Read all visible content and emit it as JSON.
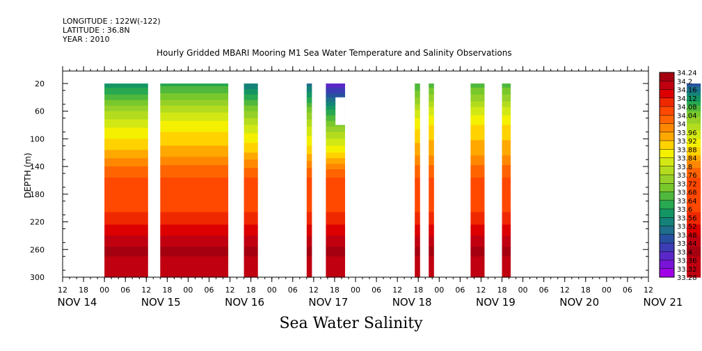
{
  "header": {
    "longitude": "LONGITUDE : 122W(-122)",
    "latitude": "LATITUDE : 36.8N",
    "year": "YEAR : 2010"
  },
  "chart_data": {
    "type": "heatmap",
    "title": "Hourly Gridded MBARI Mooring M1 Sea Water Temperature and Salinity Observations",
    "bottom_title": "Sea Water Salinity",
    "xlabel": "",
    "ylabel": "DEPTH (m)",
    "x_hour_ticks": [
      "12",
      "18",
      "00",
      "06",
      "12",
      "18",
      "00",
      "06",
      "12",
      "18",
      "00",
      "06",
      "12",
      "18",
      "00",
      "06",
      "12",
      "18",
      "00",
      "06",
      "12",
      "18",
      "00",
      "06",
      "12",
      "18",
      "00",
      "06",
      "12"
    ],
    "x_date_labels": [
      "NOV 14",
      "NOV 15",
      "NOV 16",
      "NOV 17",
      "NOV 18",
      "NOV 19",
      "NOV 20",
      "NOV 21"
    ],
    "x_range_hours": [
      12,
      180
    ],
    "x_origin_label": "NOV 14 00",
    "y_ticks": [
      20,
      60,
      100,
      140,
      180,
      220,
      260,
      300
    ],
    "ylim": [
      300,
      2
    ],
    "colorbar_levels": [
      34.24,
      34.2,
      34.16,
      34.12,
      34.08,
      34.04,
      34,
      33.96,
      33.92,
      33.88,
      33.84,
      33.8,
      33.76,
      33.72,
      33.68,
      33.64,
      33.6,
      33.56,
      33.52,
      33.48,
      33.44,
      33.4,
      33.36,
      33.32,
      33.28
    ],
    "colorbar_labels": [
      "34.24",
      "34.2",
      "34.16",
      "34.12",
      "34.08",
      "34.04",
      "34",
      "33.96",
      "33.92",
      "33.88",
      "33.84",
      "33.8",
      "33.76",
      "33.72",
      "33.68",
      "33.64",
      "33.6",
      "33.56",
      "33.52",
      "33.48",
      "33.44",
      "33.4",
      "33.36",
      "33.32",
      "33.28"
    ],
    "colors": {
      "34.22": "#a50010",
      "34.18": "#c00010",
      "34.14": "#dc0000",
      "34.10": "#f02800",
      "34.06": "#ff4800",
      "34.02": "#ff6400",
      "33.98": "#ff8800",
      "33.94": "#ffa800",
      "33.90": "#ffd200",
      "33.86": "#f4f000",
      "33.82": "#d2e814",
      "33.78": "#b4dc1e",
      "33.74": "#96d028",
      "33.70": "#78c82c",
      "33.66": "#50b83c",
      "33.62": "#28a850",
      "33.58": "#149664",
      "33.54": "#148278",
      "33.50": "#1e6e8c",
      "33.46": "#2850a0",
      "33.42": "#3c3cb4",
      "33.38": "#5a28c8",
      "33.34": "#7814d7",
      "33.30": "#a000e6"
    },
    "profile_depths": [
      20,
      40,
      60,
      80,
      100,
      120,
      140,
      160,
      180,
      200,
      220,
      240,
      260,
      280,
      300
    ],
    "profile_salinity": [
      33.57,
      33.66,
      33.76,
      33.83,
      33.88,
      33.93,
      34.0,
      34.05,
      34.06,
      34.07,
      34.11,
      34.16,
      34.21,
      34.19,
      34.17
    ],
    "segments": [
      {
        "start": 24.0,
        "end": 36.5,
        "top_salinity": 33.57
      },
      {
        "start": 40.0,
        "end": 59.5,
        "top_salinity": 33.62
      },
      {
        "start": 64.0,
        "end": 68.0,
        "top_salinity": 33.52
      },
      {
        "start": 82.0,
        "end": 83.5,
        "top_salinity": 33.5
      },
      {
        "start": 87.5,
        "end": 93.0,
        "top_salinity": 33.36,
        "note": "white gap upper-right of segment"
      },
      {
        "start": 113.0,
        "end": 114.5,
        "top_salinity": 33.64
      },
      {
        "start": 117.0,
        "end": 118.5,
        "top_salinity": 33.66
      },
      {
        "start": 129.0,
        "end": 133.0,
        "top_salinity": 33.66
      },
      {
        "start": 138.0,
        "end": 140.5,
        "top_salinity": 33.66
      },
      {
        "start": 191.0,
        "end": 195.0,
        "top_salinity": 33.46
      }
    ]
  }
}
